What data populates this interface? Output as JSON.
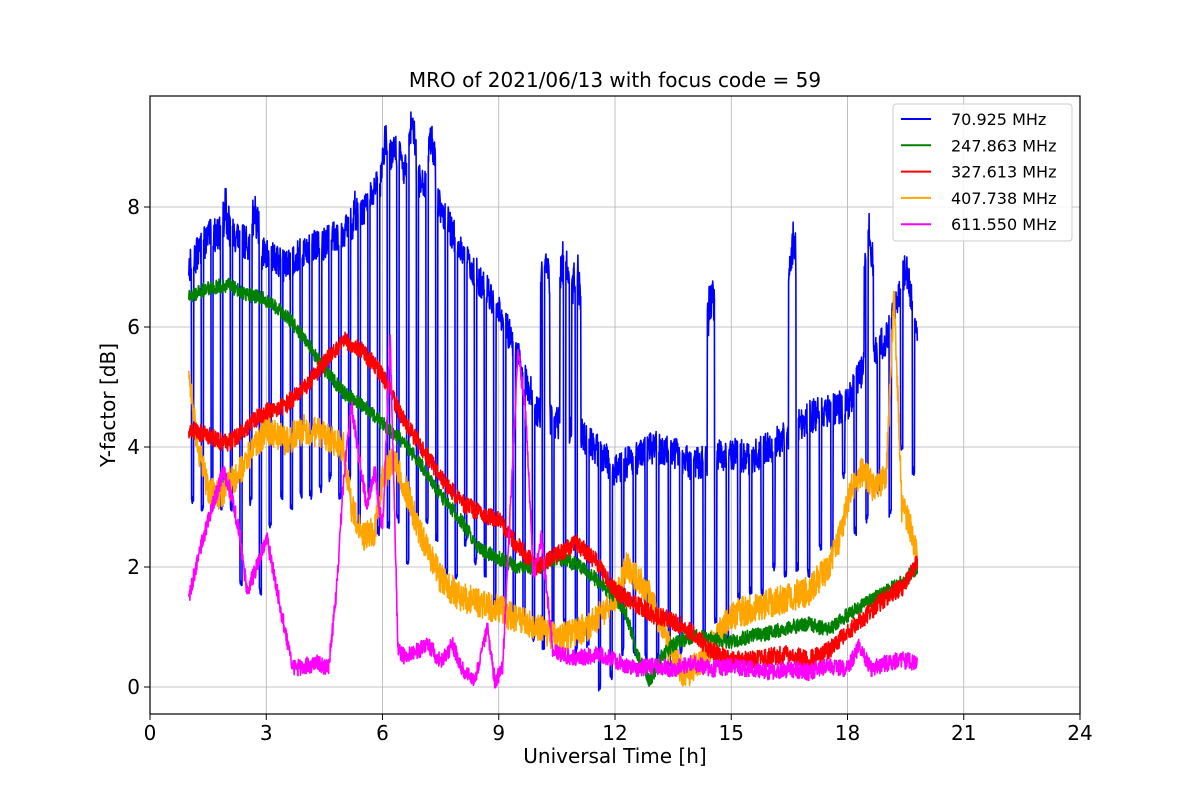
{
  "chart_data": {
    "type": "line",
    "title": "MRO of 2021/06/13 with focus code = 59",
    "xlabel": "Universal Time [h]",
    "ylabel": "Y-factor [dB]",
    "xlim": [
      0,
      24
    ],
    "ylim": [
      -0.45,
      9.85
    ],
    "xticks": [
      0,
      3,
      6,
      9,
      12,
      15,
      18,
      21,
      24
    ],
    "yticks": [
      0,
      2,
      4,
      6,
      8
    ],
    "grid": true,
    "legend_position": "upper right",
    "series": [
      {
        "name": " 70.925 MHz",
        "color": "#0000ff",
        "x": [
          1.0,
          1.5,
          2.0,
          2.5,
          3.0,
          3.5,
          4.0,
          4.5,
          5.0,
          5.5,
          6.0,
          6.3,
          6.6,
          7.0,
          7.5,
          8.0,
          8.5,
          9.0,
          9.5,
          10.0,
          10.5,
          11.0,
          11.5,
          12.0,
          12.5,
          13.0,
          13.5,
          14.0,
          14.5,
          15.0,
          15.5,
          16.0,
          16.5,
          17.0,
          17.5,
          18.0,
          18.5,
          19.0,
          19.5,
          19.8
        ],
        "y": [
          7.0,
          7.5,
          7.6,
          7.4,
          7.2,
          7.0,
          7.3,
          7.4,
          7.6,
          7.9,
          8.5,
          9.0,
          8.6,
          8.4,
          8.0,
          7.3,
          6.8,
          6.3,
          5.5,
          4.6,
          4.4,
          4.3,
          4.0,
          3.6,
          3.8,
          4.0,
          3.9,
          3.7,
          3.8,
          3.9,
          3.8,
          4.0,
          4.2,
          4.5,
          4.6,
          4.7,
          5.5,
          5.8,
          7.0,
          6.0
        ],
        "dips": [
          [
            1.1,
            3.1
          ],
          [
            1.35,
            3.0
          ],
          [
            1.6,
            3.0
          ],
          [
            1.85,
            3.0
          ],
          [
            2.1,
            3.0
          ],
          [
            2.35,
            1.7
          ],
          [
            2.6,
            3.1
          ],
          [
            2.85,
            1.6
          ],
          [
            3.1,
            2.7
          ],
          [
            3.4,
            3.2
          ],
          [
            3.65,
            3.0
          ],
          [
            3.9,
            3.2
          ],
          [
            4.15,
            3.2
          ],
          [
            4.4,
            3.3
          ],
          [
            4.65,
            3.5
          ],
          [
            4.9,
            3.2
          ],
          [
            5.15,
            3.5
          ],
          [
            5.4,
            2.6
          ],
          [
            5.65,
            3.2
          ],
          [
            5.9,
            2.6
          ],
          [
            6.15,
            2.7
          ],
          [
            6.4,
            2.8
          ],
          [
            6.65,
            2.1
          ],
          [
            6.9,
            2.8
          ],
          [
            7.15,
            2.8
          ],
          [
            7.4,
            2.5
          ],
          [
            7.65,
            1.9
          ],
          [
            7.9,
            1.8
          ],
          [
            8.15,
            2.4
          ],
          [
            8.4,
            2.1
          ],
          [
            8.65,
            1.9
          ],
          [
            8.9,
            1.4
          ],
          [
            9.15,
            1.3
          ],
          [
            9.4,
            1.3
          ],
          [
            9.65,
            1.2
          ],
          [
            9.9,
            0.8
          ],
          [
            10.15,
            0.7
          ],
          [
            10.4,
            0.9
          ],
          [
            10.7,
            1.1
          ],
          [
            11.0,
            0.6
          ],
          [
            11.3,
            0.7
          ],
          [
            11.6,
            0.0
          ],
          [
            11.9,
            0.2
          ],
          [
            12.2,
            0.6
          ],
          [
            12.5,
            0.6
          ],
          [
            12.8,
            0.5
          ],
          [
            13.1,
            0.5
          ],
          [
            13.4,
            0.4
          ],
          [
            13.7,
            0.6
          ],
          [
            14.0,
            0.9
          ],
          [
            14.3,
            0.5
          ],
          [
            14.6,
            1.1
          ],
          [
            14.9,
            0.8
          ],
          [
            15.2,
            1.5
          ],
          [
            15.5,
            1.6
          ],
          [
            15.8,
            1.6
          ],
          [
            16.1,
            2.0
          ],
          [
            16.4,
            1.9
          ],
          [
            16.7,
            2.0
          ],
          [
            17.0,
            1.9
          ],
          [
            17.3,
            2.3
          ],
          [
            17.6,
            2.3
          ],
          [
            17.9,
            3.5
          ],
          [
            18.2,
            2.6
          ],
          [
            18.5,
            2.8
          ],
          [
            18.8,
            3.3
          ],
          [
            19.1,
            2.9
          ],
          [
            19.4,
            4.0
          ],
          [
            19.7,
            3.6
          ]
        ],
        "peaks": [
          [
            1.95,
            8.0
          ],
          [
            2.7,
            8.0
          ],
          [
            5.3,
            8.0
          ],
          [
            6.1,
            9.2
          ],
          [
            6.75,
            9.35
          ],
          [
            7.25,
            9.2
          ],
          [
            10.2,
            7.1
          ],
          [
            10.7,
            7.2
          ],
          [
            11.0,
            7.0
          ],
          [
            14.5,
            6.6
          ],
          [
            16.6,
            7.4
          ],
          [
            18.55,
            7.5
          ]
        ]
      },
      {
        "name": "247.863 MHz",
        "color": "#008000",
        "x": [
          1.0,
          1.5,
          2.0,
          2.5,
          3.0,
          3.5,
          4.0,
          4.5,
          5.0,
          5.5,
          6.0,
          6.5,
          7.0,
          7.5,
          8.0,
          8.5,
          9.0,
          9.5,
          10.0,
          10.5,
          11.0,
          11.5,
          12.0,
          12.3,
          12.6,
          12.9,
          13.2,
          13.5,
          14.0,
          14.5,
          15.0,
          15.5,
          16.0,
          16.5,
          17.0,
          17.5,
          18.0,
          18.5,
          19.0,
          19.5,
          19.8
        ],
        "y": [
          6.5,
          6.65,
          6.7,
          6.55,
          6.45,
          6.2,
          5.8,
          5.3,
          4.9,
          4.7,
          4.4,
          4.1,
          3.7,
          3.2,
          2.8,
          2.3,
          2.15,
          2.0,
          2.0,
          2.15,
          2.05,
          1.8,
          1.5,
          1.2,
          0.5,
          0.1,
          0.5,
          0.7,
          0.85,
          0.8,
          0.75,
          0.85,
          0.9,
          1.0,
          1.05,
          0.95,
          1.2,
          1.4,
          1.6,
          1.8,
          2.0
        ]
      },
      {
        "name": "327.613 MHz",
        "color": "#ff0000",
        "x": [
          1.0,
          1.5,
          2.0,
          2.3,
          2.6,
          3.0,
          3.5,
          4.0,
          4.5,
          5.0,
          5.5,
          6.0,
          6.5,
          7.0,
          7.5,
          8.0,
          8.5,
          9.0,
          9.3,
          9.7,
          10.0,
          10.5,
          11.0,
          11.5,
          12.0,
          12.5,
          13.0,
          13.5,
          14.0,
          14.5,
          15.0,
          15.5,
          16.0,
          16.5,
          17.0,
          17.5,
          18.0,
          18.5,
          19.0,
          19.5,
          19.8
        ],
        "y": [
          4.3,
          4.2,
          4.05,
          4.2,
          4.4,
          4.6,
          4.7,
          5.0,
          5.4,
          5.8,
          5.6,
          5.2,
          4.5,
          4.0,
          3.5,
          3.1,
          2.9,
          2.8,
          2.5,
          2.2,
          2.0,
          2.2,
          2.4,
          2.1,
          1.6,
          1.4,
          1.2,
          1.1,
          0.9,
          0.6,
          0.45,
          0.45,
          0.5,
          0.55,
          0.45,
          0.6,
          0.9,
          1.2,
          1.5,
          1.7,
          2.1
        ]
      },
      {
        "name": "407.738 MHz",
        "color": "#ffa500",
        "x": [
          1.0,
          1.2,
          1.5,
          1.8,
          2.2,
          2.6,
          3.0,
          3.5,
          4.0,
          4.5,
          5.0,
          5.2,
          5.5,
          5.8,
          6.0,
          6.3,
          6.6,
          7.0,
          7.5,
          8.0,
          8.5,
          9.0,
          9.5,
          10.0,
          10.5,
          11.0,
          11.5,
          12.0,
          12.3,
          12.6,
          12.9,
          13.2,
          13.5,
          13.8,
          14.2,
          14.6,
          15.0,
          15.5,
          16.0,
          16.5,
          17.0,
          17.5,
          17.8,
          18.1,
          18.4,
          18.7,
          19.0,
          19.2,
          19.4,
          19.6,
          19.8
        ],
        "y": [
          5.3,
          4.1,
          3.3,
          3.2,
          3.5,
          3.9,
          4.3,
          4.1,
          4.3,
          4.2,
          4.0,
          3.0,
          2.5,
          2.6,
          3.5,
          3.8,
          3.3,
          2.5,
          1.8,
          1.5,
          1.4,
          1.3,
          1.1,
          1.0,
          0.8,
          0.9,
          1.1,
          1.5,
          2.0,
          1.8,
          1.5,
          1.0,
          0.5,
          0.2,
          0.4,
          0.8,
          1.2,
          1.3,
          1.4,
          1.5,
          1.6,
          2.0,
          2.5,
          3.3,
          3.6,
          3.3,
          3.5,
          6.6,
          3.0,
          2.7,
          2.2
        ]
      },
      {
        "name": "611.550 MHz",
        "color": "#ff00ff",
        "x": [
          1.0,
          1.3,
          1.6,
          1.9,
          2.1,
          2.3,
          2.5,
          2.7,
          2.9,
          3.0,
          3.2,
          3.4,
          3.7,
          4.0,
          4.3,
          4.6,
          4.8,
          5.0,
          5.2,
          5.4,
          5.6,
          5.8,
          6.0,
          6.2,
          6.4,
          6.6,
          6.9,
          7.2,
          7.5,
          7.8,
          8.1,
          8.4,
          8.7,
          8.9,
          9.1,
          9.3,
          9.5,
          9.7,
          9.9,
          10.1,
          10.4,
          10.8,
          11.2,
          11.6,
          12.0,
          12.5,
          13.0,
          13.5,
          14.0,
          14.5,
          15.0,
          15.5,
          16.0,
          16.5,
          17.0,
          17.5,
          18.0,
          18.3,
          18.6,
          19.0,
          19.4,
          19.8
        ],
        "y": [
          1.5,
          2.3,
          3.0,
          3.6,
          3.2,
          2.6,
          1.6,
          1.9,
          2.3,
          2.5,
          1.9,
          1.2,
          0.3,
          0.35,
          0.4,
          0.3,
          1.5,
          3.5,
          4.7,
          3.8,
          3.0,
          3.6,
          2.6,
          5.8,
          0.6,
          0.5,
          0.6,
          0.7,
          0.4,
          0.7,
          0.25,
          0.15,
          1.0,
          0.1,
          0.3,
          3.0,
          5.6,
          4.5,
          1.8,
          2.5,
          0.6,
          0.5,
          0.5,
          0.55,
          0.45,
          0.3,
          0.35,
          0.3,
          0.4,
          0.3,
          0.35,
          0.3,
          0.25,
          0.3,
          0.25,
          0.35,
          0.3,
          0.7,
          0.3,
          0.4,
          0.45,
          0.4
        ]
      }
    ]
  }
}
